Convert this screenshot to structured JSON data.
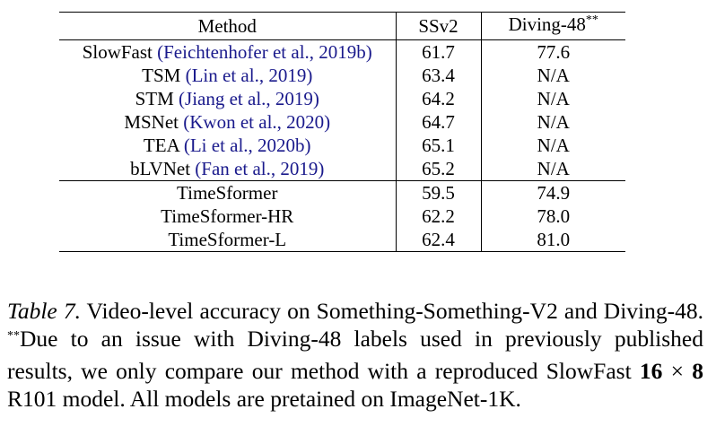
{
  "table": {
    "header": {
      "method": "Method",
      "ssv2": "SSv2",
      "diving": "Diving-48",
      "diving_mark": "**"
    },
    "rows_group1": [
      {
        "name": "SlowFast",
        "cite": "(Feichtenhofer et al., 2019b)",
        "ssv2": "61.7",
        "diving": "77.6"
      },
      {
        "name": "TSM",
        "cite": "(Lin et al., 2019)",
        "ssv2": "63.4",
        "diving": "N/A"
      },
      {
        "name": "STM",
        "cite": "(Jiang et al., 2019)",
        "ssv2": "64.2",
        "diving": "N/A"
      },
      {
        "name": "MSNet",
        "cite": "(Kwon et al., 2020)",
        "ssv2": "64.7",
        "diving": "N/A"
      },
      {
        "name": "TEA",
        "cite": "(Li et al., 2020b)",
        "ssv2": "65.1",
        "diving": "N/A"
      },
      {
        "name": "bLVNet",
        "cite": "(Fan et al., 2019)",
        "ssv2": "65.2",
        "diving": "N/A"
      }
    ],
    "rows_group2": [
      {
        "name": "TimeSformer",
        "ssv2": "59.5",
        "diving": "74.9"
      },
      {
        "name": "TimeSformer-HR",
        "ssv2": "62.2",
        "diving": "78.0"
      },
      {
        "name": "TimeSformer-L",
        "ssv2": "62.4",
        "diving": "81.0"
      }
    ]
  },
  "caption": {
    "label": "Table 7.",
    "text1": " Video-level accuracy on Something-Something-V2 and Diving-48. ",
    "mark": "**",
    "text2": "Due to an issue with Diving-48 labels used in previously published results, we only compare our method with a reproduced SlowFast ",
    "math_a": "16",
    "math_op": "×",
    "math_b": "8",
    "text3": " R101 model. All models are pretained on ImageNet-1K."
  }
}
